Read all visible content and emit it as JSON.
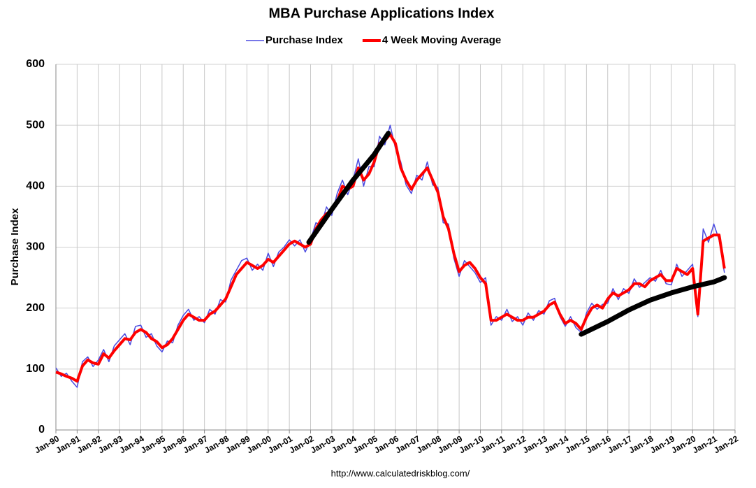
{
  "chart_data": {
    "type": "line",
    "title": "MBA Purchase Applications Index",
    "y_label": "Purchase Index",
    "source": "http://www.calculatedriskblog.com/",
    "x": [
      "1990-01",
      "1990-04",
      "1990-07",
      "1990-10",
      "1991-01",
      "1991-04",
      "1991-07",
      "1991-10",
      "1992-01",
      "1992-04",
      "1992-07",
      "1992-10",
      "1993-01",
      "1993-04",
      "1993-07",
      "1993-10",
      "1994-01",
      "1994-04",
      "1994-07",
      "1994-10",
      "1995-01",
      "1995-04",
      "1995-07",
      "1995-10",
      "1996-01",
      "1996-04",
      "1996-07",
      "1996-10",
      "1997-01",
      "1997-04",
      "1997-07",
      "1997-10",
      "1998-01",
      "1998-04",
      "1998-07",
      "1998-10",
      "1999-01",
      "1999-04",
      "1999-07",
      "1999-10",
      "2000-01",
      "2000-04",
      "2000-07",
      "2000-10",
      "2001-01",
      "2001-04",
      "2001-07",
      "2001-10",
      "2002-01",
      "2002-04",
      "2002-07",
      "2002-10",
      "2003-01",
      "2003-04",
      "2003-07",
      "2003-10",
      "2004-01",
      "2004-04",
      "2004-07",
      "2004-10",
      "2005-01",
      "2005-04",
      "2005-07",
      "2005-10",
      "2006-01",
      "2006-04",
      "2006-07",
      "2006-10",
      "2007-01",
      "2007-04",
      "2007-07",
      "2007-10",
      "2008-01",
      "2008-04",
      "2008-07",
      "2008-10",
      "2009-01",
      "2009-04",
      "2009-07",
      "2009-10",
      "2010-01",
      "2010-04",
      "2010-07",
      "2010-10",
      "2011-01",
      "2011-04",
      "2011-07",
      "2011-10",
      "2012-01",
      "2012-04",
      "2012-07",
      "2012-10",
      "2013-01",
      "2013-04",
      "2013-07",
      "2013-10",
      "2014-01",
      "2014-04",
      "2014-07",
      "2014-10",
      "2015-01",
      "2015-04",
      "2015-07",
      "2015-10",
      "2016-01",
      "2016-04",
      "2016-07",
      "2016-10",
      "2017-01",
      "2017-04",
      "2017-07",
      "2017-10",
      "2018-01",
      "2018-04",
      "2018-07",
      "2018-10",
      "2019-01",
      "2019-04",
      "2019-07",
      "2019-10",
      "2020-01",
      "2020-04",
      "2020-07",
      "2020-10",
      "2021-01",
      "2021-04",
      "2021-07"
    ],
    "series": [
      {
        "name": "Purchase Index",
        "color": "#4a4ae0",
        "width": 1.5,
        "values": [
          102,
          88,
          93,
          80,
          70,
          112,
          120,
          104,
          115,
          132,
          112,
          138,
          148,
          158,
          140,
          170,
          172,
          152,
          158,
          138,
          128,
          146,
          143,
          172,
          188,
          198,
          180,
          186,
          176,
          198,
          190,
          214,
          210,
          246,
          262,
          278,
          282,
          262,
          272,
          262,
          290,
          268,
          292,
          300,
          312,
          302,
          312,
          292,
          312,
          340,
          336,
          366,
          352,
          388,
          410,
          386,
          410,
          445,
          400,
          432,
          432,
          482,
          468,
          500,
          462,
          440,
          402,
          388,
          418,
          410,
          440,
          402,
          398,
          340,
          338,
          282,
          252,
          278,
          268,
          258,
          242,
          250,
          172,
          186,
          180,
          198,
          178,
          186,
          172,
          192,
          180,
          196,
          190,
          212,
          216,
          186,
          170,
          186,
          168,
          160,
          192,
          208,
          198,
          206,
          208,
          232,
          214,
          232,
          224,
          248,
          234,
          242,
          250,
          244,
          262,
          240,
          238,
          272,
          252,
          262,
          272,
          186,
          330,
          308,
          338,
          312,
          258
        ]
      },
      {
        "name": "4 Week Moving Average",
        "color": "#ff0000",
        "width": 4,
        "values": [
          95,
          92,
          88,
          85,
          80,
          105,
          115,
          110,
          108,
          125,
          118,
          130,
          140,
          150,
          148,
          160,
          165,
          160,
          150,
          145,
          135,
          140,
          150,
          165,
          180,
          190,
          185,
          180,
          180,
          190,
          195,
          205,
          215,
          235,
          255,
          265,
          275,
          270,
          265,
          270,
          280,
          275,
          285,
          295,
          305,
          310,
          305,
          300,
          305,
          330,
          345,
          355,
          360,
          375,
          400,
          395,
          400,
          430,
          410,
          420,
          440,
          470,
          475,
          485,
          470,
          430,
          410,
          395,
          410,
          420,
          430,
          410,
          390,
          350,
          330,
          290,
          260,
          270,
          275,
          265,
          250,
          240,
          180,
          180,
          185,
          190,
          185,
          180,
          180,
          185,
          185,
          190,
          195,
          205,
          210,
          190,
          175,
          180,
          175,
          165,
          185,
          200,
          205,
          200,
          215,
          225,
          220,
          225,
          230,
          240,
          240,
          235,
          245,
          250,
          255,
          245,
          245,
          265,
          260,
          255,
          265,
          190,
          310,
          315,
          320,
          320,
          265
        ]
      }
    ],
    "trend_lines": [
      {
        "color": "#000000",
        "x": [
          "2001-12",
          "2003-01",
          "2004-01",
          "2005-01",
          "2005-09"
        ],
        "values": [
          308,
          362,
          410,
          452,
          487
        ]
      },
      {
        "color": "#000000",
        "x": [
          "2014-10",
          "2016-01",
          "2017-01",
          "2018-01",
          "2019-01",
          "2020-01",
          "2021-01",
          "2021-07"
        ],
        "values": [
          157,
          178,
          197,
          213,
          225,
          235,
          243,
          250
        ]
      }
    ],
    "xlim": [
      "1990-01",
      "2022-01"
    ],
    "xticks": [
      {
        "value": "1990-01",
        "label": "Jan-90"
      },
      {
        "value": "1991-01",
        "label": "Jan-91"
      },
      {
        "value": "1992-01",
        "label": "Jan-92"
      },
      {
        "value": "1993-01",
        "label": "Jan-93"
      },
      {
        "value": "1994-01",
        "label": "Jan-94"
      },
      {
        "value": "1995-01",
        "label": "Jan-95"
      },
      {
        "value": "1996-01",
        "label": "Jan-96"
      },
      {
        "value": "1997-01",
        "label": "Jan-97"
      },
      {
        "value": "1998-01",
        "label": "Jan-98"
      },
      {
        "value": "1999-01",
        "label": "Jan-99"
      },
      {
        "value": "2000-01",
        "label": "Jan-00"
      },
      {
        "value": "2001-01",
        "label": "Jan-01"
      },
      {
        "value": "2002-01",
        "label": "Jan-02"
      },
      {
        "value": "2003-01",
        "label": "Jan-03"
      },
      {
        "value": "2004-01",
        "label": "Jan-04"
      },
      {
        "value": "2005-01",
        "label": "Jan-05"
      },
      {
        "value": "2006-01",
        "label": "Jan-06"
      },
      {
        "value": "2007-01",
        "label": "Jan-07"
      },
      {
        "value": "2008-01",
        "label": "Jan-08"
      },
      {
        "value": "2009-01",
        "label": "Jan-09"
      },
      {
        "value": "2010-01",
        "label": "Jan-10"
      },
      {
        "value": "2011-01",
        "label": "Jan-11"
      },
      {
        "value": "2012-01",
        "label": "Jan-12"
      },
      {
        "value": "2013-01",
        "label": "Jan-13"
      },
      {
        "value": "2014-01",
        "label": "Jan-14"
      },
      {
        "value": "2015-01",
        "label": "Jan-15"
      },
      {
        "value": "2016-01",
        "label": "Jan-16"
      },
      {
        "value": "2017-01",
        "label": "Jan-17"
      },
      {
        "value": "2018-01",
        "label": "Jan-18"
      },
      {
        "value": "2019-01",
        "label": "Jan-19"
      },
      {
        "value": "2020-01",
        "label": "Jan-20"
      },
      {
        "value": "2021-01",
        "label": "Jan-21"
      },
      {
        "value": "2022-01",
        "label": "Jan-22"
      }
    ],
    "ylim": [
      0,
      600
    ],
    "yticks": [
      0,
      100,
      200,
      300,
      400,
      500,
      600
    ],
    "grid": true,
    "legend": "top"
  }
}
